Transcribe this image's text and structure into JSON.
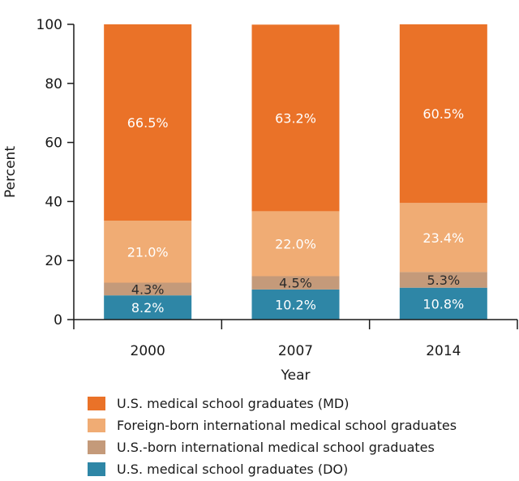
{
  "chart_data": {
    "type": "bar",
    "stacked": true,
    "categories": [
      "2000",
      "2007",
      "2014"
    ],
    "xlabel": "Year",
    "ylabel": "Percent",
    "ylim": [
      0,
      100
    ],
    "yticks": [
      0,
      20,
      40,
      60,
      80,
      100
    ],
    "grid": false,
    "legend_position": "bottom",
    "series": [
      {
        "name": "U.S. medical school graduates (DO)",
        "values": [
          8.2,
          10.2,
          10.8
        ],
        "labels": [
          "8.2%",
          "10.2%",
          "10.8%"
        ],
        "color": "#2e86a6"
      },
      {
        "name": "U.S.-born international medical school graduates",
        "values": [
          4.3,
          4.5,
          5.3
        ],
        "labels": [
          "4.3%",
          "4.5%",
          "5.3%"
        ],
        "color": "#c49a7a"
      },
      {
        "name": "Foreign-born international medical school graduates",
        "values": [
          21.0,
          22.0,
          23.4
        ],
        "labels": [
          "21.0%",
          "22.0%",
          "23.4%"
        ],
        "color": "#f0ac74"
      },
      {
        "name": "U.S. medical school graduates (MD)",
        "values": [
          66.5,
          63.2,
          60.5
        ],
        "labels": [
          "66.5%",
          "63.2%",
          "60.5%"
        ],
        "color": "#ea7228"
      }
    ],
    "legend_order": [
      3,
      2,
      1,
      0
    ]
  }
}
